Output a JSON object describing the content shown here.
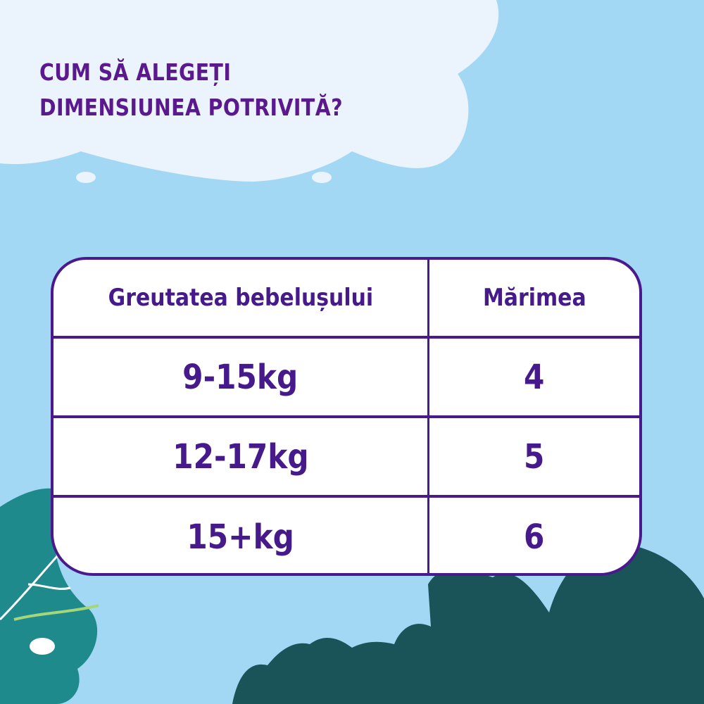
{
  "title": {
    "line1": "CUM SĂ ALEGEȚI",
    "line2": "DIMENSIUNEA POTRIVITĂ?"
  },
  "table": {
    "headers": [
      "Greutatea bebelușului",
      "Mărimea"
    ],
    "rows": [
      {
        "weight": "9-15kg",
        "size": "4"
      },
      {
        "weight": "12-17kg",
        "size": "5"
      },
      {
        "weight": "15+kg",
        "size": "6"
      }
    ]
  },
  "colors": {
    "background": "#a3d8f5",
    "cloud": "#ebf3fc",
    "text_purple": "#4a1a8c",
    "bush": "#1a5459",
    "leaf": "#1f8a8c"
  }
}
